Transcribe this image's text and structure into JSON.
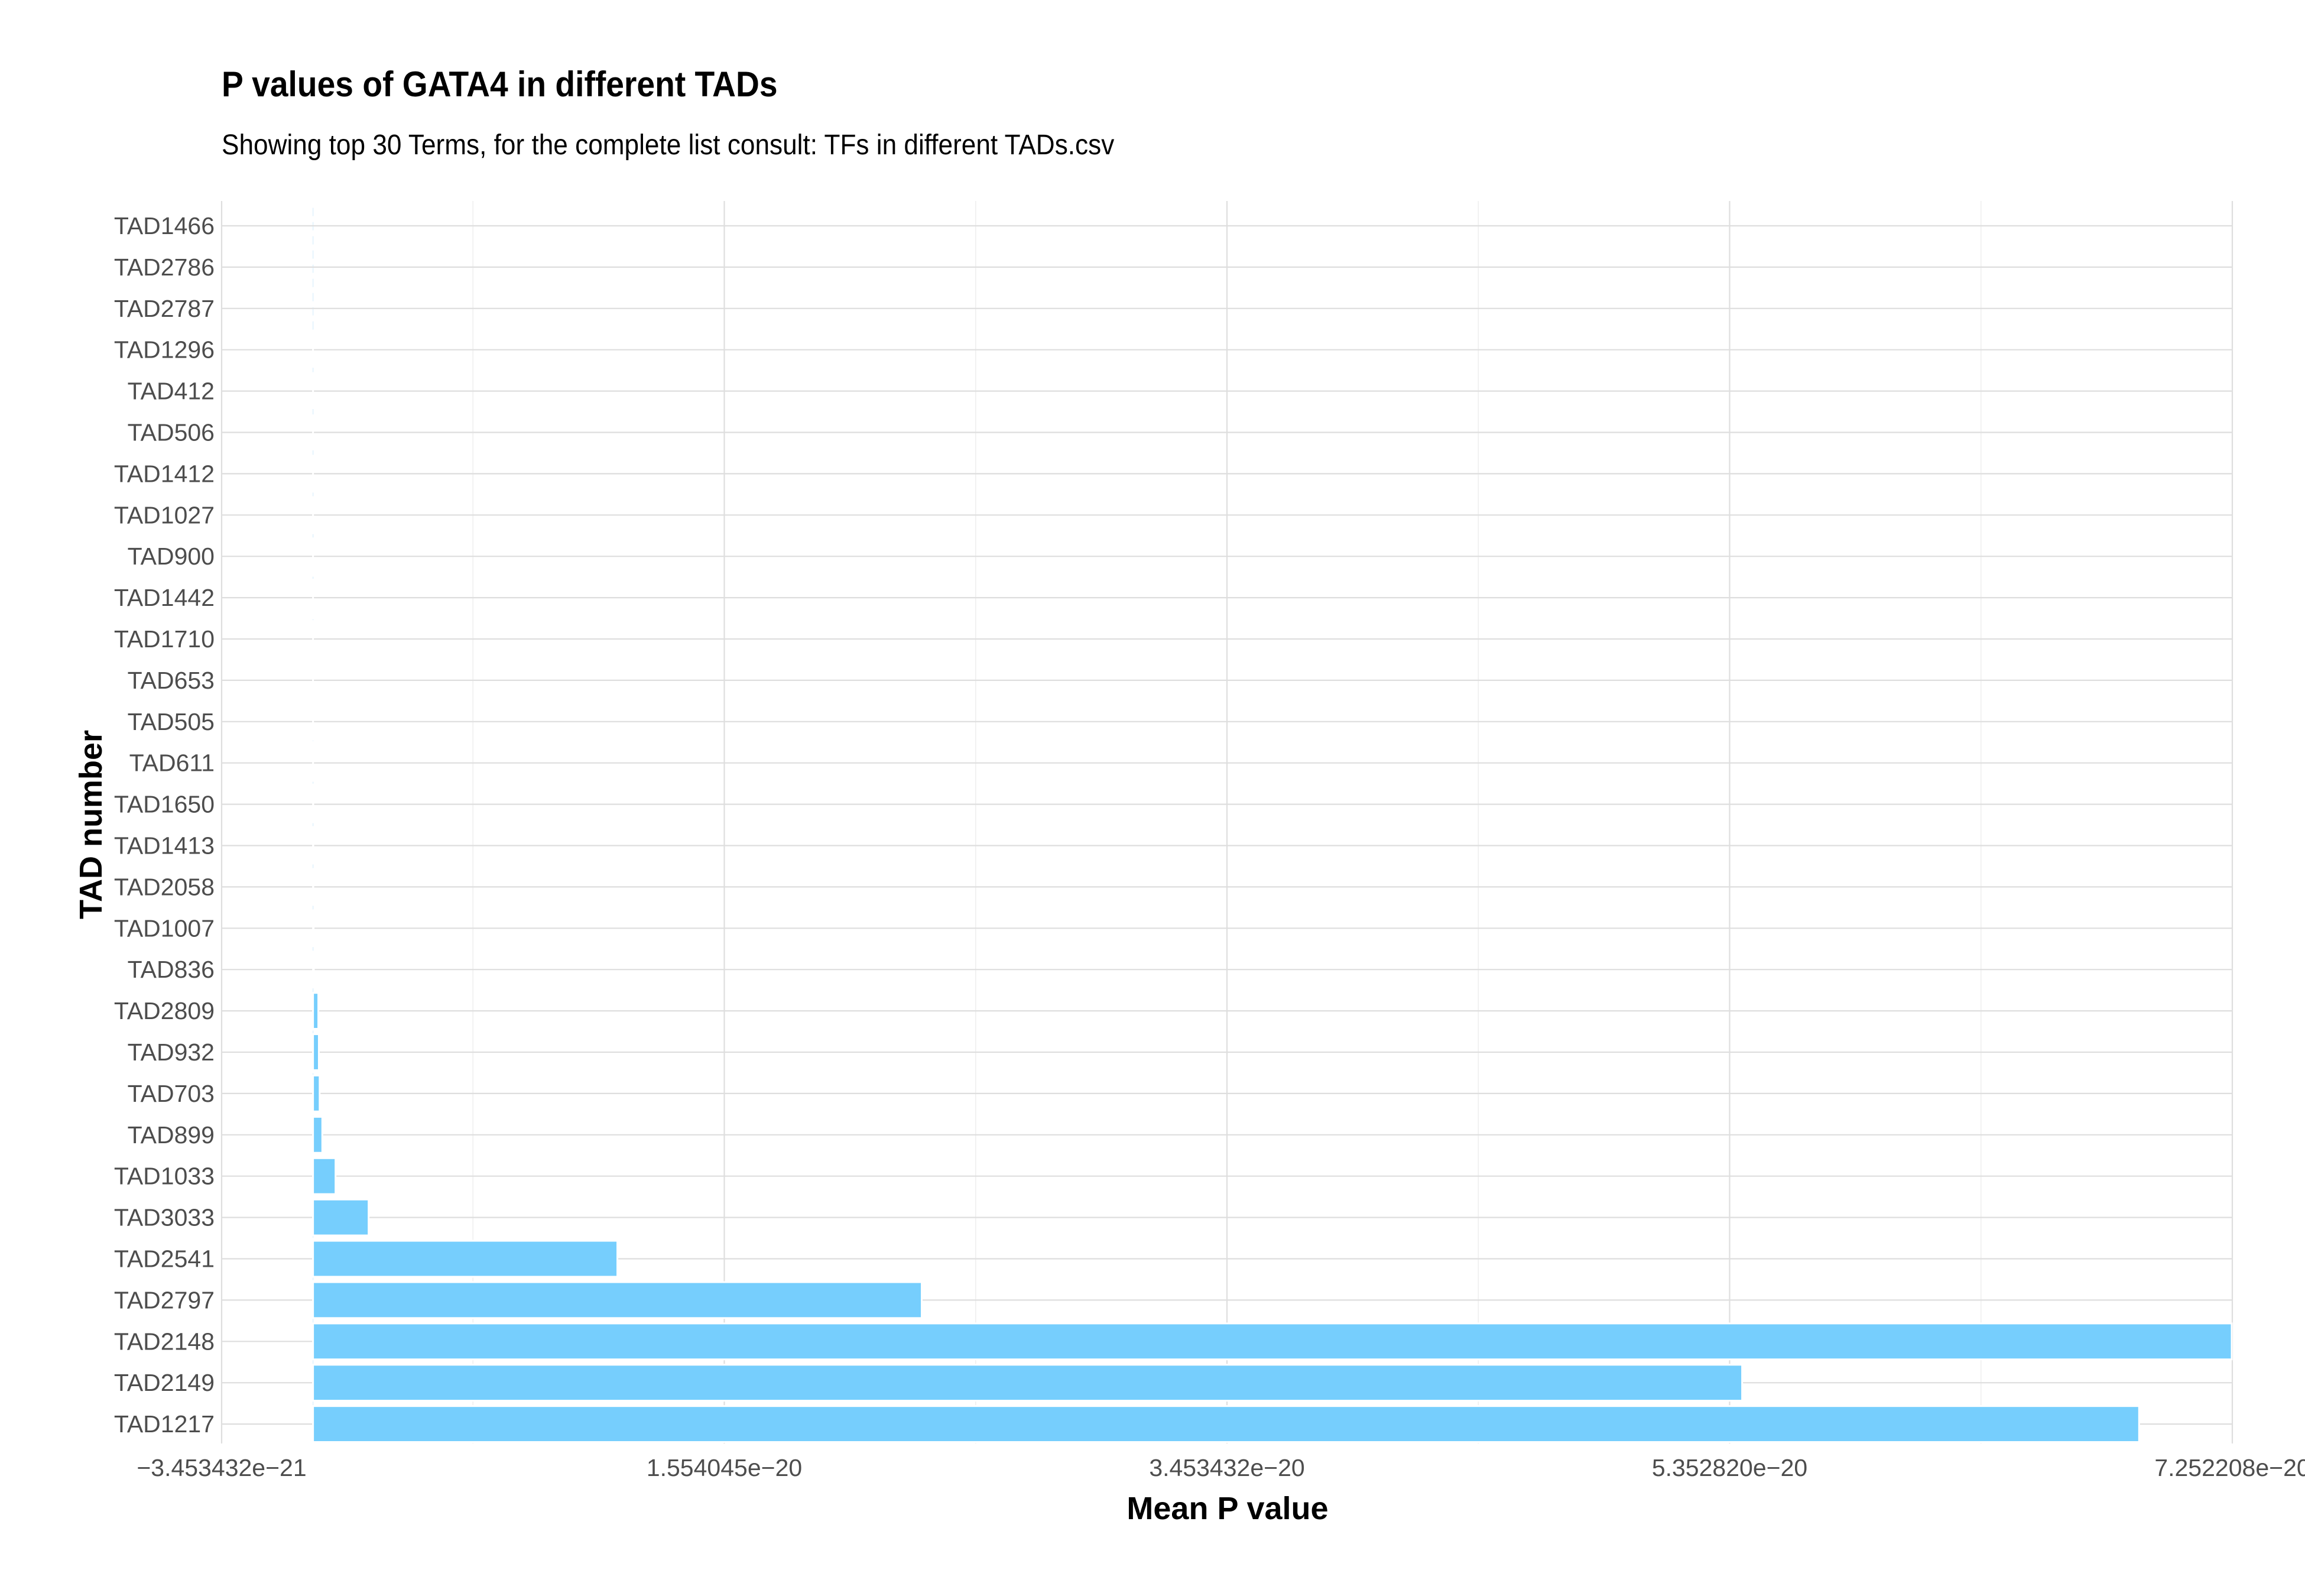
{
  "chart_data": {
    "type": "bar",
    "orientation": "horizontal",
    "title": "P values of GATA4 in different TADs",
    "subtitle": "Showing top 30 Terms, for the complete list consult: TFs in different TADs.csv",
    "xlabel": "Mean P value",
    "ylabel": "TAD number",
    "xlim": [
      -3.453432e-21,
      7.252208e-20
    ],
    "x_tick_values": [
      -3.453432e-21,
      1.554045e-20,
      3.453432e-20,
      5.35282e-20,
      7.252208e-20
    ],
    "x_tick_labels": [
      "−3.453432e−21",
      "1.554045e−20",
      "3.453432e−20",
      "5.352820e−20",
      "7.252208e−20"
    ],
    "grid": true,
    "bar_color": "#76CEFD",
    "bar_outline_color": "#FFFFFF",
    "categories": [
      "TAD1466",
      "TAD2786",
      "TAD2787",
      "TAD1296",
      "TAD412",
      "TAD506",
      "TAD1412",
      "TAD1027",
      "TAD900",
      "TAD1442",
      "TAD1710",
      "TAD653",
      "TAD505",
      "TAD611",
      "TAD1650",
      "TAD1413",
      "TAD2058",
      "TAD1007",
      "TAD836",
      "TAD2809",
      "TAD932",
      "TAD703",
      "TAD899",
      "TAD1033",
      "TAD3033",
      "TAD2541",
      "TAD2797",
      "TAD2148",
      "TAD2149",
      "TAD1217"
    ],
    "values": [
      1e-30,
      1e-29,
      1e-29,
      1e-28,
      1e-28,
      1e-28,
      1e-27,
      1e-27,
      1e-26,
      1e-26,
      1e-25,
      1e-25,
      1e-24,
      1e-24,
      1e-23,
      1e-23,
      1e-23,
      2e-23,
      3e-23,
      2e-22,
      2.2e-22,
      2.5e-22,
      3.5e-22,
      8.5e-22,
      2.1e-21,
      1.15e-20,
      2.3e-20,
      7.25e-20,
      5.4e-20,
      6.9e-20
    ]
  }
}
